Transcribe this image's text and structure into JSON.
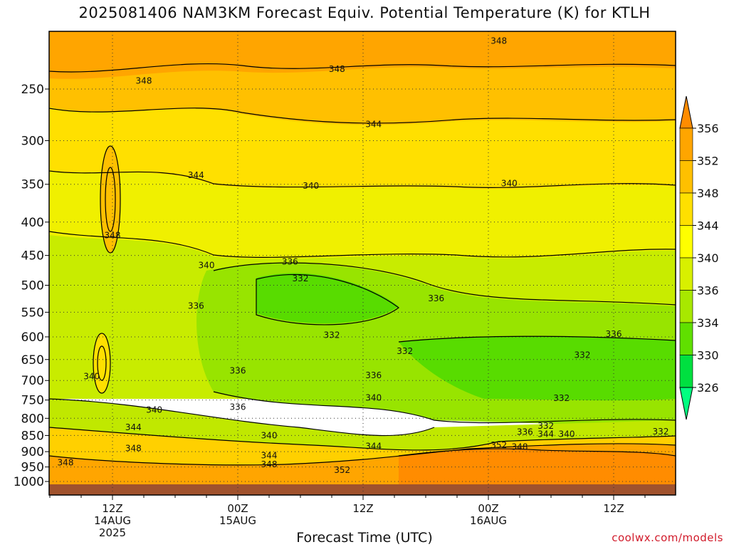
{
  "title": "2025081406 NAM3KM Forecast Equiv. Potential Temperature (K) for KTLH",
  "xlabel": "Forecast Time (UTC)",
  "footer": "coolwx.com/models",
  "chart_data": {
    "type": "heatmap",
    "variable": "Equivalent potential temperature",
    "units": "K",
    "y_axis": {
      "scale": "log",
      "range_hPa": [
        1000,
        200
      ],
      "ticks": [
        250,
        300,
        350,
        400,
        450,
        500,
        550,
        600,
        650,
        700,
        750,
        800,
        850,
        900,
        950,
        1000
      ]
    },
    "x_axis": {
      "ticks": [
        {
          "hour": 6,
          "lines": [
            "12Z",
            "14AUG",
            "2025"
          ]
        },
        {
          "hour": 18,
          "lines": [
            "00Z",
            "15AUG"
          ]
        },
        {
          "hour": 30,
          "lines": [
            "12Z"
          ]
        },
        {
          "hour": 42,
          "lines": [
            "00Z",
            "16AUG"
          ]
        },
        {
          "hour": 54,
          "lines": [
            "12Z"
          ]
        }
      ],
      "range_hours": [
        0,
        60
      ]
    },
    "grid": true,
    "colorbar": {
      "labels": [
        356,
        352,
        348,
        344,
        340,
        336,
        334,
        330,
        326
      ],
      "colors": [
        "#ff8c00",
        "#ffa500",
        "#ffc000",
        "#ffe000",
        "#ffff00",
        "#d8f000",
        "#a8e800",
        "#60e000",
        "#00e040",
        "#00ff80"
      ]
    },
    "contour_labels": [
      {
        "text": "348",
        "hour": 43.0,
        "p": 211
      },
      {
        "text": "348",
        "hour": 27.5,
        "p": 233
      },
      {
        "text": "348",
        "hour": 9.0,
        "p": 243
      },
      {
        "text": "344",
        "hour": 31.0,
        "p": 283
      },
      {
        "text": "344",
        "hour": 14.0,
        "p": 339
      },
      {
        "text": "340",
        "hour": 25.0,
        "p": 352
      },
      {
        "text": "340",
        "hour": 44.0,
        "p": 349
      },
      {
        "text": "348",
        "hour": 6.0,
        "p": 419
      },
      {
        "text": "340",
        "hour": 15.0,
        "p": 466
      },
      {
        "text": "336",
        "hour": 23.0,
        "p": 460
      },
      {
        "text": "332",
        "hour": 24.0,
        "p": 488
      },
      {
        "text": "336",
        "hour": 14.0,
        "p": 538
      },
      {
        "text": "336",
        "hour": 37.0,
        "p": 524
      },
      {
        "text": "332",
        "hour": 27.0,
        "p": 596
      },
      {
        "text": "336",
        "hour": 54.0,
        "p": 594
      },
      {
        "text": "332",
        "hour": 34.0,
        "p": 631
      },
      {
        "text": "332",
        "hour": 51.0,
        "p": 640
      },
      {
        "text": "340",
        "hour": 4.0,
        "p": 690
      },
      {
        "text": "336",
        "hour": 18.0,
        "p": 676
      },
      {
        "text": "336",
        "hour": 31.0,
        "p": 687
      },
      {
        "text": "340",
        "hour": 31.0,
        "p": 744
      },
      {
        "text": "332",
        "hour": 49.0,
        "p": 745
      },
      {
        "text": "340",
        "hour": 10.0,
        "p": 777
      },
      {
        "text": "336",
        "hour": 18.0,
        "p": 769
      },
      {
        "text": "344",
        "hour": 8.0,
        "p": 826
      },
      {
        "text": "332",
        "hour": 47.5,
        "p": 822
      },
      {
        "text": "336",
        "hour": 45.5,
        "p": 840
      },
      {
        "text": "344",
        "hour": 47.5,
        "p": 846
      },
      {
        "text": "340",
        "hour": 49.5,
        "p": 846
      },
      {
        "text": "332",
        "hour": 58.5,
        "p": 838
      },
      {
        "text": "340",
        "hour": 21.0,
        "p": 850
      },
      {
        "text": "344",
        "hour": 31.0,
        "p": 883
      },
      {
        "text": "352",
        "hour": 43.0,
        "p": 880
      },
      {
        "text": "348",
        "hour": 45.0,
        "p": 885
      },
      {
        "text": "348",
        "hour": 8.0,
        "p": 890
      },
      {
        "text": "344",
        "hour": 21.0,
        "p": 912
      },
      {
        "text": "348",
        "hour": 21.0,
        "p": 941
      },
      {
        "text": "348",
        "hour": 1.5,
        "p": 935
      },
      {
        "text": "352",
        "hour": 28.0,
        "p": 961
      }
    ]
  }
}
